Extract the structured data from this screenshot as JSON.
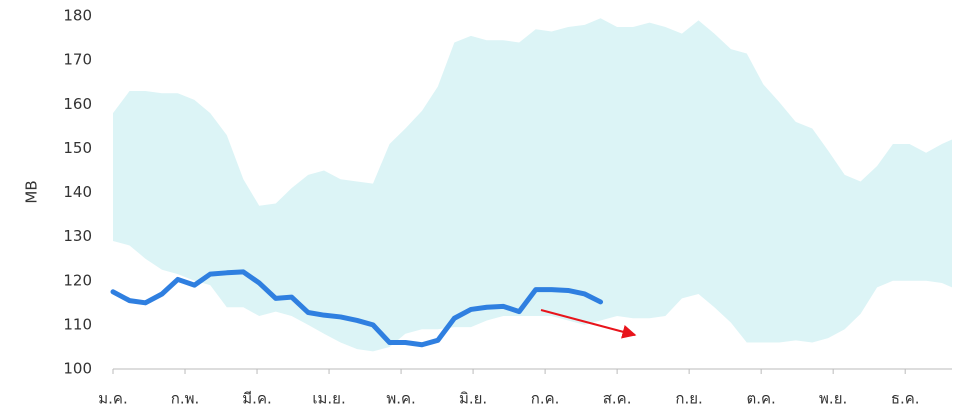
{
  "chart_data": {
    "type": "line",
    "y_label": "MB",
    "x": [
      0,
      0.23,
      0.45,
      0.68,
      0.9,
      1.13,
      1.35,
      1.58,
      1.81,
      2.03,
      2.26,
      2.48,
      2.71,
      2.93,
      3.16,
      3.39,
      3.61,
      3.84,
      4.06,
      4.29,
      4.51,
      4.74,
      4.97,
      5.19,
      5.42,
      5.64,
      5.87,
      6.09,
      6.32,
      6.55,
      6.77,
      7.0,
      7.22,
      7.45,
      7.67,
      7.9,
      8.13,
      8.35,
      8.58,
      8.8,
      9.03,
      9.25,
      9.48,
      9.71,
      9.93,
      10.16,
      10.38,
      10.61,
      10.83,
      11.06,
      11.29,
      11.51,
      11.65
    ],
    "xlim": [
      0,
      11.65
    ],
    "xticks": [
      {
        "value": 0,
        "label": "ม.ค."
      },
      {
        "value": 1,
        "label": "ก.พ."
      },
      {
        "value": 2,
        "label": "มี.ค."
      },
      {
        "value": 3,
        "label": "เม.ย."
      },
      {
        "value": 4,
        "label": "พ.ค."
      },
      {
        "value": 5,
        "label": "มิ.ย."
      },
      {
        "value": 6,
        "label": "ก.ค."
      },
      {
        "value": 7,
        "label": "ส.ค."
      },
      {
        "value": 8,
        "label": "ก.ย."
      },
      {
        "value": 9,
        "label": "ต.ค."
      },
      {
        "value": 10,
        "label": "พ.ย."
      },
      {
        "value": 11,
        "label": "ธ.ค."
      }
    ],
    "ylim": [
      100,
      180
    ],
    "yticks": [
      100,
      110,
      120,
      130,
      140,
      150,
      160,
      170,
      180
    ],
    "band": {
      "color": "#dcf4f6",
      "upper": [
        158,
        163,
        163,
        162.5,
        162.5,
        161,
        158,
        153,
        143,
        137,
        137.5,
        141,
        144,
        145,
        143,
        142.5,
        142,
        151,
        154.5,
        158.5,
        164,
        174,
        175.5,
        174.5,
        174.5,
        174,
        177,
        176.5,
        177.5,
        178,
        179.5,
        177.5,
        177.5,
        178.5,
        177.5,
        176,
        179,
        176,
        172.5,
        171.5,
        164.5,
        160.5,
        156,
        154.5,
        149.5,
        144,
        142.5,
        146,
        151,
        151,
        149,
        151,
        152
      ],
      "lower": [
        129,
        128,
        125,
        122.5,
        121.5,
        120,
        119,
        114,
        114,
        112,
        113,
        112,
        110,
        108,
        106,
        104.5,
        104,
        105,
        108,
        109,
        109,
        109.5,
        109.5,
        111,
        112,
        112,
        112,
        112,
        111,
        110,
        111,
        112,
        111.5,
        111.5,
        112,
        116,
        117,
        114,
        110.5,
        106,
        106,
        106,
        106.5,
        106,
        107,
        109,
        112.5,
        118.5,
        120,
        120,
        120,
        119.5,
        118.5
      ]
    },
    "series": [
      {
        "color": "#2f7fe0",
        "values": [
          117.5,
          115.5,
          115,
          117,
          120.3,
          119,
          121.5,
          121.8,
          122,
          119.5,
          116,
          116.3,
          112.8,
          112.2,
          111.8,
          111,
          110,
          106,
          106,
          105.5,
          106.5,
          111.5,
          113.5,
          114,
          114.2,
          113,
          118,
          118,
          117.8,
          117,
          115.2,
          null,
          null,
          null,
          null,
          null,
          null,
          null,
          null,
          null,
          null,
          null,
          null,
          null,
          null,
          null,
          null,
          null,
          null,
          null,
          null,
          null,
          null
        ]
      }
    ]
  }
}
